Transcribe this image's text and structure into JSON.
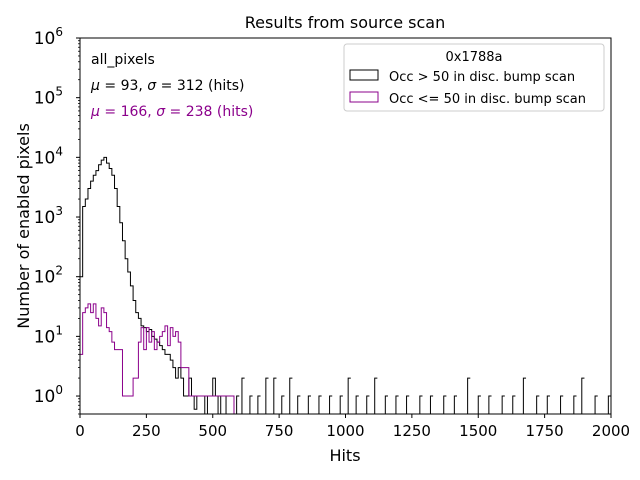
{
  "chart_data": {
    "type": "histogram",
    "title": "Results from source scan",
    "xlabel": "Hits",
    "ylabel": "Number of enabled pixels",
    "xlim": [
      0,
      2000
    ],
    "ylim": [
      0.5,
      1000000
    ],
    "yscale": "log",
    "grid": false,
    "bin_width": 10,
    "x_ticks": [
      {
        "value": 0,
        "label": "0"
      },
      {
        "value": 250,
        "label": "250"
      },
      {
        "value": 500,
        "label": "500"
      },
      {
        "value": 750,
        "label": "750"
      },
      {
        "value": 1000,
        "label": "1000"
      },
      {
        "value": 1250,
        "label": "1250"
      },
      {
        "value": 1500,
        "label": "1500"
      },
      {
        "value": 1750,
        "label": "1750"
      },
      {
        "value": 2000,
        "label": "2000"
      }
    ],
    "y_ticks": [
      {
        "value": 1,
        "base": "10",
        "exp": "0"
      },
      {
        "value": 10,
        "base": "10",
        "exp": "1"
      },
      {
        "value": 100,
        "base": "10",
        "exp": "2"
      },
      {
        "value": 1000,
        "base": "10",
        "exp": "3"
      },
      {
        "value": 10000,
        "base": "10",
        "exp": "4"
      },
      {
        "value": 100000,
        "base": "10",
        "exp": "5"
      },
      {
        "value": 1000000,
        "base": "10",
        "exp": "6"
      }
    ],
    "annotations": {
      "label": "all_pixels",
      "stats1": {
        "mu": "93",
        "sigma": "312",
        "unit": "(hits)",
        "color": "#000000"
      },
      "stats2": {
        "mu": "166",
        "sigma": "238",
        "unit": "(hits)",
        "color": "#8b008b"
      }
    },
    "legend": {
      "title": "0x1788a",
      "placement": "top-right",
      "entries": [
        {
          "label": "Occ > 50 in disc. bump scan",
          "color": "#000000"
        },
        {
          "label": "Occ <= 50 in disc. bump scan",
          "color": "#8b008b"
        }
      ]
    },
    "series": [
      {
        "name": "Occ > 50 in disc. bump scan",
        "color": "#000000",
        "x": [
          0,
          10,
          20,
          30,
          40,
          50,
          60,
          70,
          80,
          90,
          100,
          110,
          120,
          130,
          140,
          150,
          160,
          170,
          180,
          190,
          200,
          210,
          220,
          230,
          240,
          250,
          260,
          270,
          280,
          290,
          300,
          310,
          320,
          330,
          340,
          350,
          360,
          370,
          380,
          390,
          400,
          410,
          420,
          430,
          440,
          450,
          460,
          470,
          480,
          490,
          500,
          510,
          520,
          530,
          550,
          560,
          570,
          590,
          610,
          640,
          670,
          700,
          730,
          760,
          790,
          820,
          860,
          900,
          940,
          980,
          1010,
          1040,
          1080,
          1110,
          1150,
          1190,
          1230,
          1280,
          1320,
          1370,
          1410,
          1460,
          1500,
          1540,
          1590,
          1630,
          1670,
          1720,
          1760,
          1810,
          1860,
          1890,
          1940,
          1990
        ],
        "y": [
          100,
          1500,
          2000,
          3000,
          4000,
          5000,
          6000,
          7500,
          9000,
          10000,
          8000,
          6500,
          5000,
          3000,
          1500,
          800,
          400,
          200,
          120,
          70,
          40,
          25,
          20,
          15,
          14,
          12,
          13,
          10,
          9,
          8,
          7,
          6,
          5,
          5,
          4,
          3,
          2,
          3,
          2,
          1,
          1,
          2,
          1,
          0.6,
          1,
          1,
          1,
          0,
          1,
          1,
          2,
          1,
          0,
          1,
          1,
          1,
          1,
          1,
          2,
          1,
          1,
          2,
          2,
          1,
          2,
          1,
          1,
          1,
          1,
          1,
          2,
          1,
          1,
          2,
          1,
          1,
          1,
          1,
          1,
          1,
          1,
          2,
          1,
          1,
          1,
          1,
          2,
          1,
          1,
          1,
          1,
          2,
          1,
          1
        ]
      },
      {
        "name": "Occ <= 50 in disc. bump scan",
        "color": "#8b008b",
        "x": [
          0,
          10,
          20,
          30,
          40,
          50,
          60,
          70,
          80,
          90,
          100,
          110,
          120,
          130,
          140,
          150,
          160,
          170,
          180,
          190,
          200,
          210,
          220,
          230,
          240,
          250,
          260,
          270,
          280,
          290,
          300,
          310,
          320,
          330,
          340,
          350,
          360,
          370,
          380,
          390,
          400,
          410,
          420,
          430,
          440,
          450,
          460,
          470,
          480,
          490,
          500,
          510,
          520,
          530,
          540,
          550,
          560,
          570
        ],
        "y": [
          5,
          25,
          30,
          35,
          25,
          35,
          20,
          15,
          30,
          25,
          14,
          12,
          8,
          6,
          6,
          6,
          1,
          1,
          1,
          1,
          2,
          2,
          8,
          14,
          6,
          14,
          8,
          12,
          6,
          8,
          10,
          12,
          15,
          7,
          14,
          10,
          12,
          8,
          3,
          3,
          3,
          1,
          1,
          1,
          1,
          1,
          1,
          1,
          1,
          1,
          1,
          1,
          1,
          1,
          1,
          1,
          1,
          1
        ]
      }
    ]
  }
}
